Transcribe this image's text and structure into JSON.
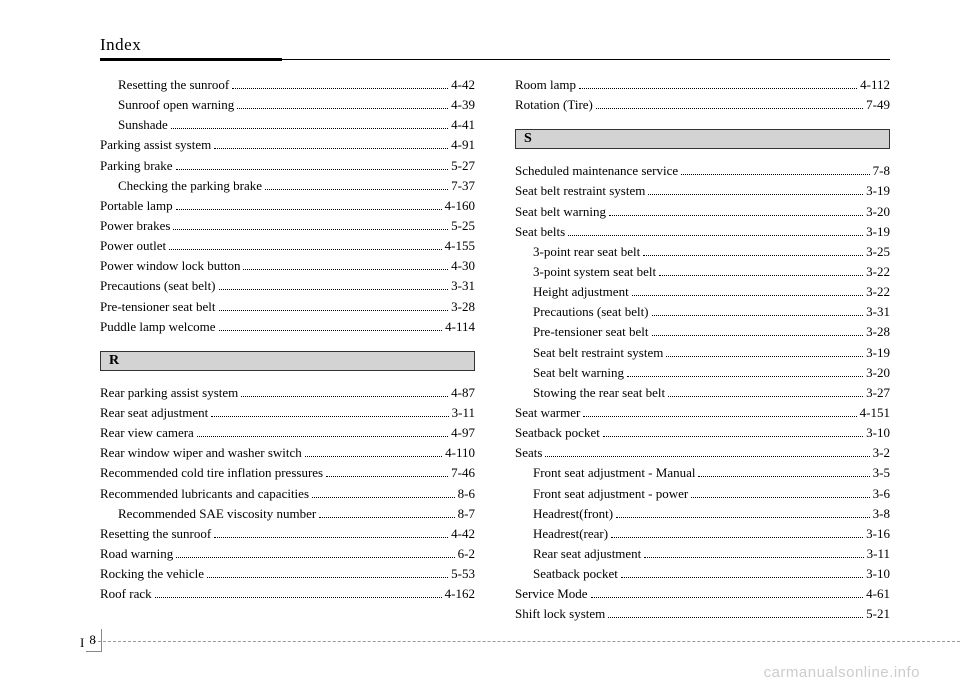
{
  "header": {
    "title": "Index"
  },
  "footer": {
    "section": "I",
    "page": "8"
  },
  "watermark": "carmanualsonline.info",
  "sections": {
    "letter_R": "R",
    "letter_S": "S"
  },
  "left_top": [
    {
      "label": "Resetting the sunroof",
      "page": "4-42",
      "indent": 1
    },
    {
      "label": "Sunroof open warning",
      "page": "4-39",
      "indent": 1
    },
    {
      "label": "Sunshade",
      "page": "4-41",
      "indent": 1
    },
    {
      "label": "Parking assist system",
      "page": "4-91",
      "indent": 0
    },
    {
      "label": "Parking brake",
      "page": "5-27",
      "indent": 0
    },
    {
      "label": "Checking the parking brake",
      "page": "7-37",
      "indent": 1
    },
    {
      "label": "Portable lamp",
      "page": "4-160",
      "indent": 0
    },
    {
      "label": "Power brakes",
      "page": "5-25",
      "indent": 0
    },
    {
      "label": "Power outlet",
      "page": "4-155",
      "indent": 0
    },
    {
      "label": "Power window lock button",
      "page": "4-30",
      "indent": 0
    },
    {
      "label": "Precautions (seat belt)",
      "page": "3-31",
      "indent": 0
    },
    {
      "label": "Pre-tensioner seat belt",
      "page": "3-28",
      "indent": 0
    },
    {
      "label": "Puddle lamp welcome",
      "page": "4-114",
      "indent": 0
    }
  ],
  "left_R": [
    {
      "label": "Rear parking assist system",
      "page": "4-87",
      "indent": 0
    },
    {
      "label": "Rear seat adjustment",
      "page": "3-11",
      "indent": 0
    },
    {
      "label": "Rear view camera",
      "page": "4-97",
      "indent": 0
    },
    {
      "label": "Rear window wiper and washer switch",
      "page": "4-110",
      "indent": 0
    },
    {
      "label": "Recommended cold tire inflation pressures",
      "page": "7-46",
      "indent": 0
    },
    {
      "label": "Recommended lubricants and capacities",
      "page": "8-6",
      "indent": 0
    },
    {
      "label": "Recommended SAE viscosity number",
      "page": "8-7",
      "indent": 1
    },
    {
      "label": "Resetting the sunroof",
      "page": "4-42",
      "indent": 0
    },
    {
      "label": "Road warning",
      "page": "6-2",
      "indent": 0
    },
    {
      "label": "Rocking the vehicle",
      "page": "5-53",
      "indent": 0
    },
    {
      "label": "Roof rack",
      "page": "4-162",
      "indent": 0
    }
  ],
  "right_top": [
    {
      "label": "Room lamp",
      "page": "4-112",
      "indent": 0
    },
    {
      "label": "Rotation (Tire)",
      "page": "7-49",
      "indent": 0
    }
  ],
  "right_S": [
    {
      "label": "Scheduled maintenance service",
      "page": "7-8",
      "indent": 0
    },
    {
      "label": "Seat belt restraint system",
      "page": "3-19",
      "indent": 0
    },
    {
      "label": "Seat belt warning",
      "page": "3-20",
      "indent": 0
    },
    {
      "label": "Seat belts",
      "page": "3-19",
      "indent": 0
    },
    {
      "label": "3-point rear seat belt",
      "page": "3-25",
      "indent": 1
    },
    {
      "label": "3-point system seat belt",
      "page": "3-22",
      "indent": 1
    },
    {
      "label": "Height adjustment",
      "page": "3-22",
      "indent": 1
    },
    {
      "label": "Precautions (seat belt)",
      "page": "3-31",
      "indent": 1
    },
    {
      "label": "Pre-tensioner seat belt",
      "page": "3-28",
      "indent": 1
    },
    {
      "label": "Seat belt restraint system",
      "page": "3-19",
      "indent": 1
    },
    {
      "label": "Seat belt warning",
      "page": "3-20",
      "indent": 1
    },
    {
      "label": "Stowing the rear seat belt",
      "page": "3-27",
      "indent": 1
    },
    {
      "label": "Seat warmer",
      "page": "4-151",
      "indent": 0
    },
    {
      "label": "Seatback pocket",
      "page": "3-10",
      "indent": 0
    },
    {
      "label": "Seats",
      "page": "3-2",
      "indent": 0
    },
    {
      "label": "Front seat adjustment - Manual",
      "page": "3-5",
      "indent": 1
    },
    {
      "label": "Front seat adjustment - power",
      "page": "3-6",
      "indent": 1
    },
    {
      "label": "Headrest(front)",
      "page": "3-8",
      "indent": 1
    },
    {
      "label": "Headrest(rear)",
      "page": "3-16",
      "indent": 1
    },
    {
      "label": "Rear seat adjustment",
      "page": "3-11",
      "indent": 1
    },
    {
      "label": "Seatback pocket",
      "page": "3-10",
      "indent": 1
    },
    {
      "label": "Service Mode",
      "page": "4-61",
      "indent": 0
    },
    {
      "label": "Shift lock system",
      "page": "5-21",
      "indent": 0
    }
  ]
}
